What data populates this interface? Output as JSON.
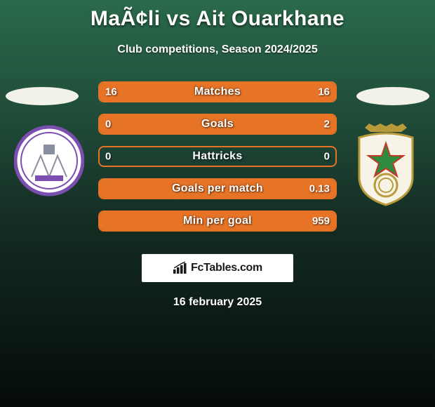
{
  "title": "MaÃ¢li vs Ait Ouarkhane",
  "subtitle": "Club competitions, Season 2024/2025",
  "date": "16 february 2025",
  "brand": "FcTables.com",
  "colors": {
    "bar_border": "#e67326",
    "bar_fill": "#e67326",
    "ellipse": "#f2f2e8",
    "text": "#ffffff",
    "bg_top": "#2a6a4a",
    "bg_bottom": "#050b08"
  },
  "left_badge": {
    "circle_fill": "#ffffff",
    "ring_color": "#7a4fb0",
    "inner_color": "#8a8fa0"
  },
  "right_badge": {
    "shield_fill": "#f7f3e6",
    "shield_border": "#b89a3a",
    "star_fill": "#2e8b3d",
    "star_outline": "#c0392b",
    "ring_color": "#b89a3a",
    "crown_color": "#b89a3a"
  },
  "stats": [
    {
      "label": "Matches",
      "left_val": "16",
      "right_val": "16",
      "left_pct": 50,
      "right_pct": 50
    },
    {
      "label": "Goals",
      "left_val": "0",
      "right_val": "2",
      "left_pct": 0,
      "right_pct": 100
    },
    {
      "label": "Hattricks",
      "left_val": "0",
      "right_val": "0",
      "left_pct": 0,
      "right_pct": 0
    },
    {
      "label": "Goals per match",
      "left_val": "",
      "right_val": "0.13",
      "left_pct": 0,
      "right_pct": 100
    },
    {
      "label": "Min per goal",
      "left_val": "",
      "right_val": "959",
      "left_pct": 0,
      "right_pct": 100
    }
  ]
}
